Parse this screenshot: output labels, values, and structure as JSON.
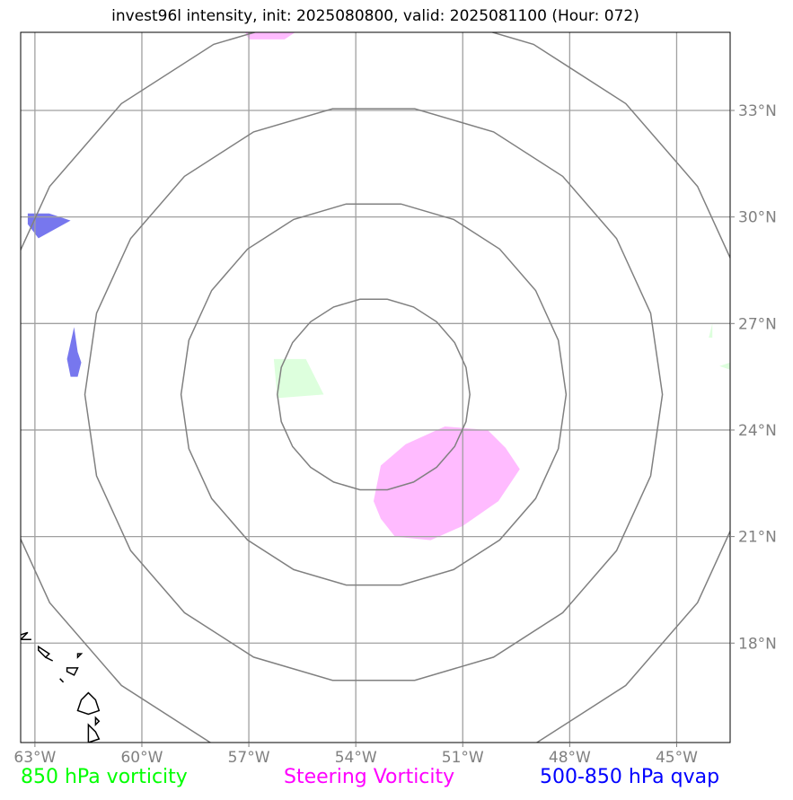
{
  "title": "invest96l intensity, init: 2025080800, valid: 2025081100 (Hour: 072)",
  "chart_data": {
    "type": "map",
    "title": "invest96l intensity, init: 2025080800, valid: 2025081100 (Hour: 072)",
    "lon_range": [
      -63.4,
      -43.5
    ],
    "lat_range": [
      15.2,
      35.2
    ],
    "x_ticks": [
      {
        "value": -63,
        "label": "63°W"
      },
      {
        "value": -60,
        "label": "60°W"
      },
      {
        "value": -57,
        "label": "57°W"
      },
      {
        "value": -54,
        "label": "54°W"
      },
      {
        "value": -51,
        "label": "51°W"
      },
      {
        "value": -48,
        "label": "48°W"
      },
      {
        "value": -45,
        "label": "45°W"
      }
    ],
    "y_ticks": [
      {
        "value": 18,
        "label": "18°N"
      },
      {
        "value": 21,
        "label": "21°N"
      },
      {
        "value": 24,
        "label": "24°N"
      },
      {
        "value": 27,
        "label": "27°N"
      },
      {
        "value": 30,
        "label": "30°N"
      },
      {
        "value": 33,
        "label": "33°N"
      }
    ],
    "y_tick_side": "right",
    "grid": true,
    "range_rings": {
      "center": [
        -53.5,
        25
      ],
      "radii_deg": [
        2.7,
        5.4,
        8.1,
        10.8
      ]
    },
    "legend": [
      {
        "label": "850 hPa vorticity",
        "color": "#00ff00"
      },
      {
        "label": "Steering Vorticity",
        "color": "#ff00ff"
      },
      {
        "label": "500-850 hPa qvap",
        "color": "#0000ff"
      }
    ],
    "fills": [
      {
        "series": "850 hPa vorticity",
        "color": "#ddffdd",
        "polygon": [
          [
            -56.3,
            26.0
          ],
          [
            -55.4,
            26.0
          ],
          [
            -54.9,
            25.0
          ],
          [
            -56.2,
            24.9
          ]
        ]
      },
      {
        "series": "850 hPa vorticity",
        "color": "#ddffdd",
        "polygon": [
          [
            -43.5,
            25.9
          ],
          [
            -43.8,
            25.8
          ],
          [
            -43.5,
            25.7
          ]
        ]
      },
      {
        "series": "850 hPa vorticity",
        "color": "#ddffdd",
        "polygon": [
          [
            -44.0,
            27.0
          ],
          [
            -44.1,
            26.6
          ],
          [
            -44.0,
            26.6
          ]
        ]
      },
      {
        "series": "Steering Vorticity",
        "color": "#ffbbff",
        "polygon": [
          [
            -51.5,
            24.1
          ],
          [
            -50.3,
            24.0
          ],
          [
            -49.8,
            23.5
          ],
          [
            -49.4,
            22.9
          ],
          [
            -50.0,
            22.0
          ],
          [
            -51.0,
            21.3
          ],
          [
            -51.9,
            20.9
          ],
          [
            -52.9,
            21.0
          ],
          [
            -53.3,
            21.5
          ],
          [
            -53.5,
            22.0
          ],
          [
            -53.3,
            23.0
          ],
          [
            -52.6,
            23.6
          ]
        ]
      },
      {
        "series": "Steering Vorticity",
        "color": "#ffbbff",
        "polygon": [
          [
            -57.1,
            35.2
          ],
          [
            -55.7,
            35.2
          ],
          [
            -56.0,
            35.0
          ],
          [
            -57.0,
            35.0
          ]
        ]
      },
      {
        "series": "500-850 hPa qvap",
        "color": "#7777ee",
        "polygon": [
          [
            -63.2,
            30.1
          ],
          [
            -62.6,
            30.1
          ],
          [
            -62.0,
            29.9
          ],
          [
            -62.9,
            29.4
          ],
          [
            -63.2,
            29.8
          ]
        ]
      },
      {
        "series": "500-850 hPa qvap",
        "color": "#7777ee",
        "polygon": [
          [
            -61.9,
            26.9
          ],
          [
            -61.8,
            26.2
          ],
          [
            -61.7,
            25.9
          ],
          [
            -61.8,
            25.5
          ],
          [
            -62.0,
            25.5
          ],
          [
            -62.1,
            26.0
          ]
        ]
      }
    ],
    "coastlines": [
      [
        [
          -63.5,
          18.2
        ],
        [
          -63.2,
          18.3
        ],
        [
          -63.4,
          18.1
        ]
      ],
      [
        [
          -63.4,
          18.1
        ],
        [
          -63.1,
          18.1
        ]
      ],
      [
        [
          -62.9,
          17.9
        ],
        [
          -62.6,
          17.7
        ],
        [
          -62.7,
          17.6
        ],
        [
          -62.9,
          17.8
        ]
      ],
      [
        [
          -62.7,
          17.6
        ],
        [
          -62.5,
          17.5
        ]
      ],
      [
        [
          -62.1,
          17.3
        ],
        [
          -61.8,
          17.3
        ],
        [
          -61.9,
          17.1
        ],
        [
          -62.1,
          17.2
        ]
      ],
      [
        [
          -61.8,
          17.7
        ],
        [
          -61.7,
          17.7
        ],
        [
          -61.8,
          17.6
        ]
      ],
      [
        [
          -62.3,
          17.0
        ],
        [
          -62.2,
          16.9
        ]
      ],
      [
        [
          -61.7,
          16.4
        ],
        [
          -61.5,
          16.6
        ],
        [
          -61.3,
          16.4
        ],
        [
          -61.2,
          16.1
        ],
        [
          -61.5,
          16.0
        ],
        [
          -61.8,
          16.1
        ]
      ],
      [
        [
          -61.3,
          15.9
        ],
        [
          -61.2,
          15.8
        ],
        [
          -61.3,
          15.7
        ]
      ],
      [
        [
          -61.5,
          15.7
        ],
        [
          -61.3,
          15.5
        ],
        [
          -61.2,
          15.3
        ],
        [
          -61.5,
          15.2
        ],
        [
          -61.5,
          15.5
        ]
      ]
    ]
  },
  "legend": {
    "vort850": "850 hPa vorticity",
    "steering": "Steering Vorticity",
    "qvap": "500-850 hPa qvap"
  }
}
